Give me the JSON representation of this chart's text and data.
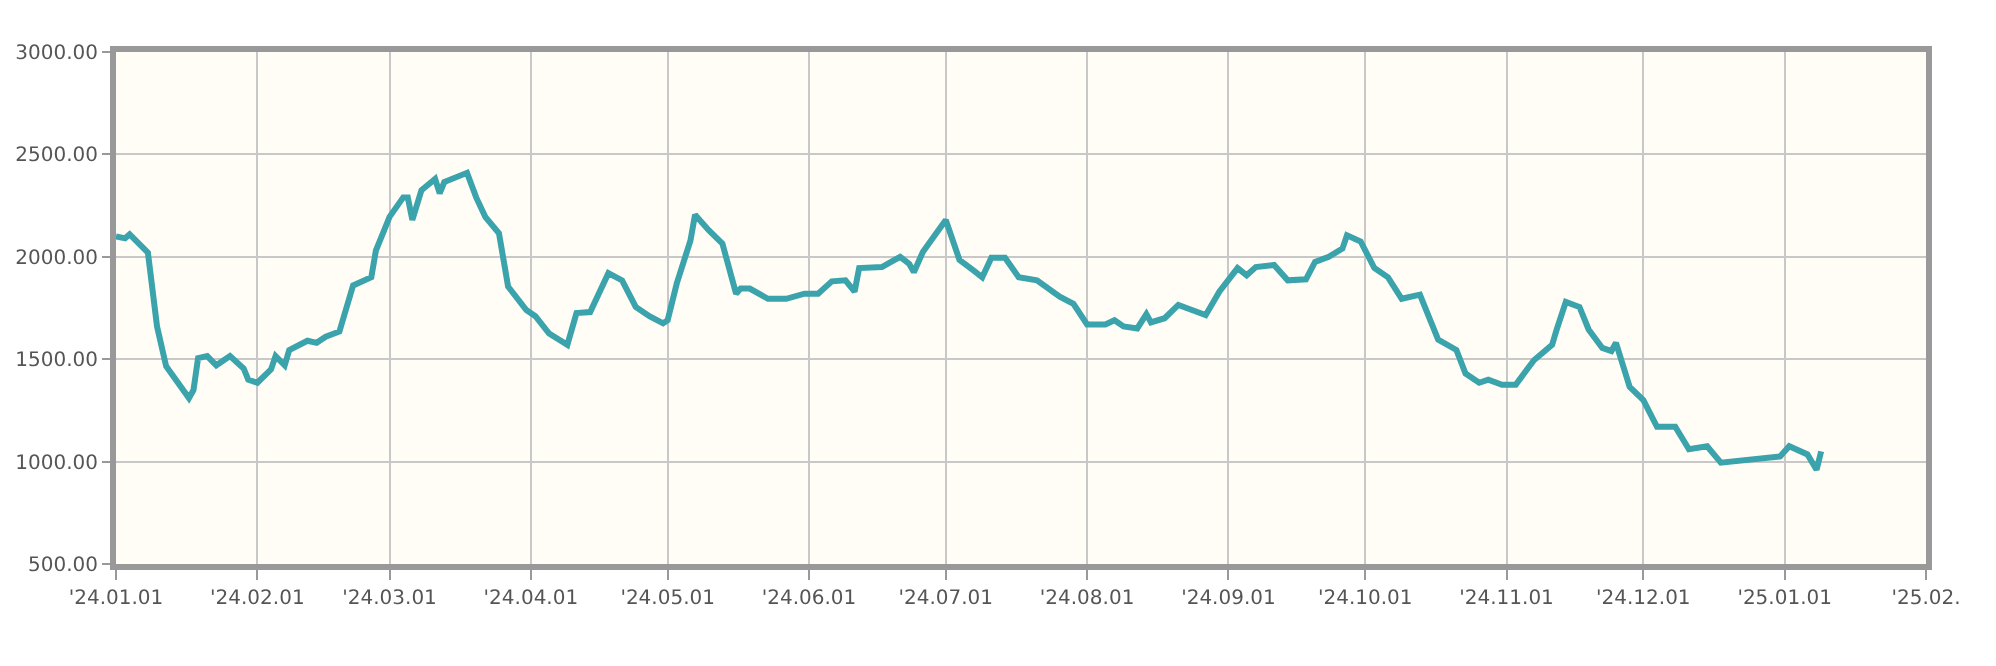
{
  "chart_data": {
    "type": "line",
    "grid": true,
    "marker": "none",
    "line_style": "solid",
    "xlim": [
      "2024-01-01",
      "2025-02-01"
    ],
    "xticks": [
      {
        "value": "2024-01-01",
        "label": "'24.01.01"
      },
      {
        "value": "2024-02-01",
        "label": "'24.02.01"
      },
      {
        "value": "2024-03-01",
        "label": "'24.03.01"
      },
      {
        "value": "2024-04-01",
        "label": "'24.04.01"
      },
      {
        "value": "2024-05-01",
        "label": "'24.05.01"
      },
      {
        "value": "2024-06-01",
        "label": "'24.06.01"
      },
      {
        "value": "2024-07-01",
        "label": "'24.07.01"
      },
      {
        "value": "2024-08-01",
        "label": "'24.08.01"
      },
      {
        "value": "2024-09-01",
        "label": "'24.09.01"
      },
      {
        "value": "2024-10-01",
        "label": "'24.10.01"
      },
      {
        "value": "2024-11-01",
        "label": "'24.11.01"
      },
      {
        "value": "2024-12-01",
        "label": "'24.12.01"
      },
      {
        "value": "2025-01-01",
        "label": "'25.01.01"
      },
      {
        "value": "2025-02-01",
        "label": "'25.02."
      }
    ],
    "ylim": [
      500,
      3000
    ],
    "yticks": [
      {
        "value": 500,
        "label": "500.00"
      },
      {
        "value": 1000,
        "label": "1000.00"
      },
      {
        "value": 1500,
        "label": "1500.00"
      },
      {
        "value": 2000,
        "label": "2000.00"
      },
      {
        "value": 2500,
        "label": "2500.00"
      },
      {
        "value": 3000,
        "label": "3000.00"
      }
    ],
    "x": [
      "2024-01-01",
      "2024-01-03",
      "2024-01-04",
      "2024-01-08",
      "2024-01-10",
      "2024-01-12",
      "2024-01-17",
      "2024-01-18",
      "2024-01-19",
      "2024-01-21",
      "2024-01-23",
      "2024-01-26",
      "2024-01-29",
      "2024-01-30",
      "2024-02-01",
      "2024-02-04",
      "2024-02-05",
      "2024-02-07",
      "2024-02-08",
      "2024-02-12",
      "2024-02-14",
      "2024-02-16",
      "2024-02-19",
      "2024-02-22",
      "2024-02-26",
      "2024-02-27",
      "2024-03-01",
      "2024-03-04",
      "2024-03-05",
      "2024-03-06",
      "2024-03-08",
      "2024-03-11",
      "2024-03-12",
      "2024-03-13",
      "2024-03-18",
      "2024-03-20",
      "2024-03-22",
      "2024-03-25",
      "2024-03-27",
      "2024-03-31",
      "2024-04-02",
      "2024-04-05",
      "2024-04-09",
      "2024-04-11",
      "2024-04-14",
      "2024-04-18",
      "2024-04-21",
      "2024-04-24",
      "2024-04-27",
      "2024-04-30",
      "2024-05-01",
      "2024-05-03",
      "2024-05-06",
      "2024-05-07",
      "2024-05-10",
      "2024-05-13",
      "2024-05-16",
      "2024-05-17",
      "2024-05-19",
      "2024-05-23",
      "2024-05-27",
      "2024-05-31",
      "2024-06-03",
      "2024-06-06",
      "2024-06-09",
      "2024-06-11",
      "2024-06-12",
      "2024-06-17",
      "2024-06-19",
      "2024-06-21",
      "2024-06-23",
      "2024-06-24",
      "2024-06-26",
      "2024-07-01",
      "2024-07-04",
      "2024-07-07",
      "2024-07-09",
      "2024-07-11",
      "2024-07-14",
      "2024-07-17",
      "2024-07-21",
      "2024-07-26",
      "2024-07-29",
      "2024-08-01",
      "2024-08-05",
      "2024-08-07",
      "2024-08-09",
      "2024-08-12",
      "2024-08-14",
      "2024-08-15",
      "2024-08-18",
      "2024-08-21",
      "2024-08-24",
      "2024-08-27",
      "2024-08-30",
      "2024-09-03",
      "2024-09-05",
      "2024-09-07",
      "2024-09-11",
      "2024-09-14",
      "2024-09-18",
      "2024-09-20",
      "2024-09-23",
      "2024-09-26",
      "2024-09-27",
      "2024-09-30",
      "2024-10-03",
      "2024-10-06",
      "2024-10-09",
      "2024-10-13",
      "2024-10-17",
      "2024-10-21",
      "2024-10-23",
      "2024-10-26",
      "2024-10-28",
      "2024-10-31",
      "2024-11-03",
      "2024-11-07",
      "2024-11-11",
      "2024-11-12",
      "2024-11-14",
      "2024-11-17",
      "2024-11-19",
      "2024-11-22",
      "2024-11-24",
      "2024-11-25",
      "2024-11-28",
      "2024-12-01",
      "2024-12-04",
      "2024-12-08",
      "2024-12-11",
      "2024-12-15",
      "2024-12-18",
      "2024-12-31",
      "2025-01-02",
      "2025-01-06",
      "2025-01-08",
      "2025-01-09"
    ],
    "series": [
      {
        "color": "#3ba3ab",
        "values": [
          2100,
          2090,
          2110,
          2020,
          1660,
          1465,
          1310,
          1350,
          1505,
          1515,
          1470,
          1515,
          1455,
          1400,
          1385,
          1450,
          1515,
          1470,
          1545,
          1590,
          1580,
          1610,
          1635,
          1860,
          1900,
          2030,
          2195,
          2290,
          2290,
          2180,
          2325,
          2380,
          2310,
          2365,
          2410,
          2290,
          2195,
          2115,
          1855,
          1740,
          1710,
          1625,
          1570,
          1725,
          1730,
          1920,
          1885,
          1755,
          1710,
          1675,
          1690,
          1870,
          2080,
          2205,
          2130,
          2065,
          1820,
          1845,
          1845,
          1795,
          1795,
          1820,
          1820,
          1880,
          1885,
          1830,
          1945,
          1950,
          1975,
          2000,
          1965,
          1925,
          2025,
          2180,
          1985,
          1935,
          1900,
          1995,
          1995,
          1900,
          1885,
          1805,
          1770,
          1670,
          1670,
          1690,
          1660,
          1650,
          1720,
          1680,
          1700,
          1765,
          1740,
          1715,
          1830,
          1945,
          1910,
          1950,
          1960,
          1885,
          1890,
          1975,
          2000,
          2040,
          2105,
          2075,
          1945,
          1900,
          1795,
          1815,
          1595,
          1545,
          1430,
          1385,
          1400,
          1375,
          1375,
          1495,
          1570,
          1645,
          1780,
          1755,
          1645,
          1555,
          1540,
          1580,
          1365,
          1300,
          1170,
          1170,
          1060,
          1075,
          995,
          1025,
          1075,
          1035,
          960,
          1050
        ]
      }
    ]
  }
}
